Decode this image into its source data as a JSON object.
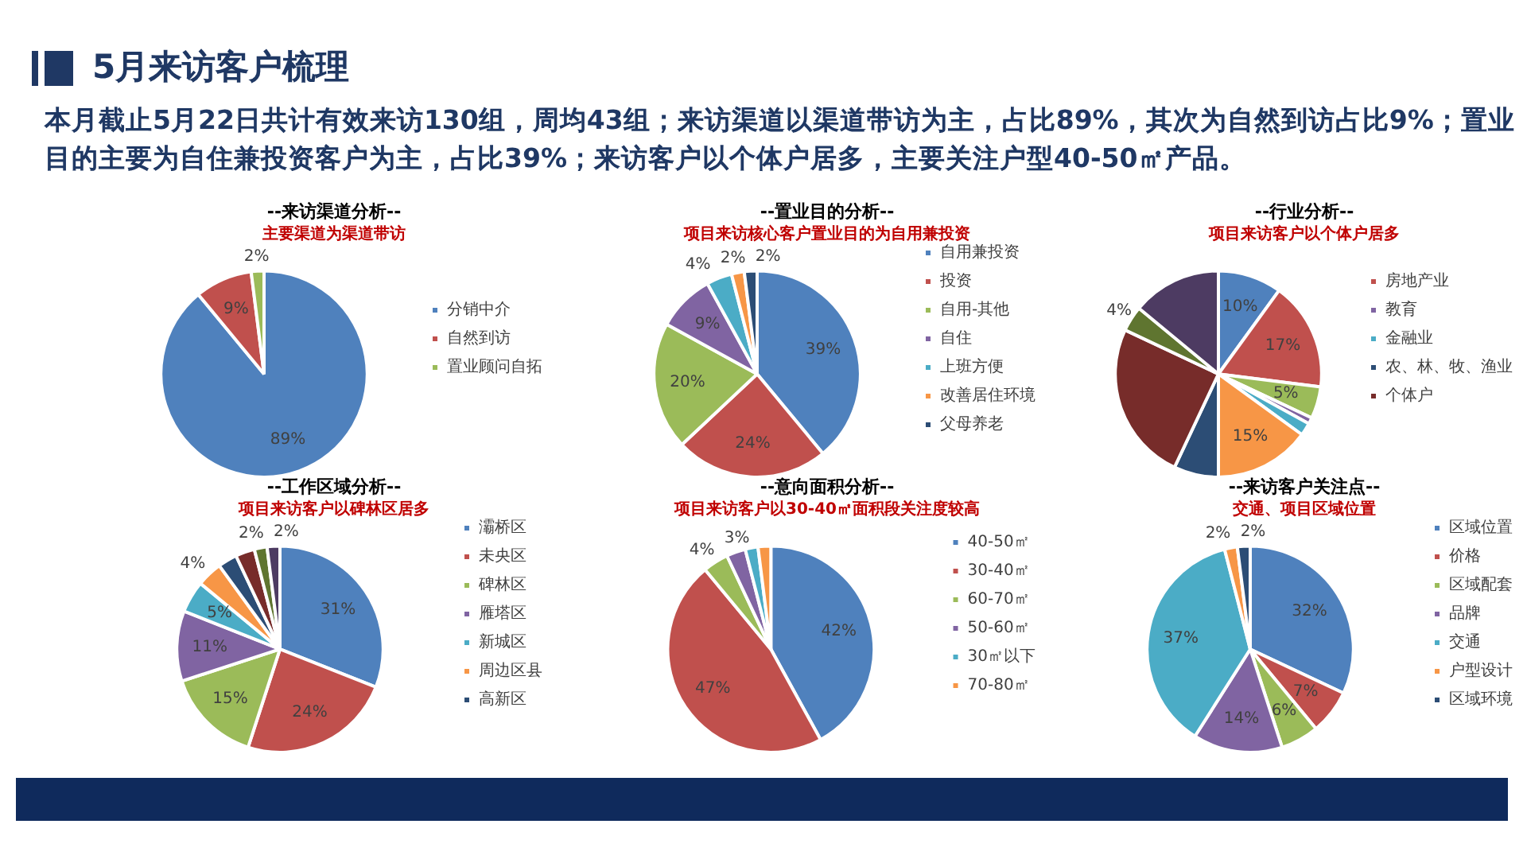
{
  "chart_data": [
    {
      "type": "pie",
      "title": "--来访渠道分析--",
      "subtitle": "主要渠道为渠道带访",
      "annotations": [
        "5月来访客户梳理",
        "本月截止5月22日共计有效来访130组，周均43组；来访渠道以渠道带访为主，占比89%，其次为自然到访占比9%；置业目的主要为自住兼投资客户为主，占比39%；来访客户以个体户居多，主要关注户型40-50㎡产品。"
      ],
      "categories": [
        "分销中介",
        "自然到访",
        "置业顾问自拓"
      ],
      "values": [
        89,
        9,
        2
      ],
      "value_labels": [
        "89%",
        "9%",
        "2%"
      ],
      "colors": [
        "#4f81bd",
        "#c0504d",
        "#9bbb59"
      ],
      "legend": "right"
    },
    {
      "type": "pie",
      "title": "--置业目的分析--",
      "subtitle": "项目来访核心客户置业目的为自用兼投资",
      "categories": [
        "自用兼投资",
        "投资",
        "自用-其他",
        "自住",
        "上班方便",
        "改善居住环境",
        "父母养老"
      ],
      "values": [
        39,
        24,
        20,
        9,
        4,
        2,
        2
      ],
      "value_labels": [
        "39%",
        "24%",
        "20%",
        "9%",
        "4%",
        "2%",
        "2%"
      ],
      "colors": [
        "#4f81bd",
        "#c0504d",
        "#9bbb59",
        "#8064a2",
        "#4bacc6",
        "#f79646",
        "#2c4d75"
      ],
      "legend": "right"
    },
    {
      "type": "pie",
      "title": "--行业分析--",
      "subtitle": "项目来访客户以个体户居多",
      "categories": [
        null,
        "房地产业",
        null,
        "教育",
        "金融业",
        null,
        "农、林、牧、渔业",
        "个体户",
        null,
        null
      ],
      "values": [
        10,
        17,
        5,
        1,
        2,
        15,
        7,
        25,
        4,
        14
      ],
      "value_labels": [
        "10%",
        "17%",
        "5%",
        null,
        null,
        "15%",
        null,
        null,
        "4%",
        null
      ],
      "colors": [
        "#4f81bd",
        "#c0504d",
        "#9bbb59",
        "#8064a2",
        "#4bacc6",
        "#f79646",
        "#2c4d75",
        "#772c2a",
        "#5f7530",
        "#4d3b62"
      ],
      "legend": "right"
    },
    {
      "type": "pie",
      "title": "--工作区域分析--",
      "subtitle": "项目来访客户以碑林区居多",
      "categories": [
        "灞桥区",
        "未央区",
        "碑林区",
        "雁塔区",
        "新城区",
        "周边区县",
        "高新区",
        null,
        null,
        null
      ],
      "values": [
        31,
        24,
        15,
        11,
        5,
        4,
        3,
        3,
        2,
        2
      ],
      "value_labels": [
        "31%",
        "24%",
        "15%",
        "11%",
        "5%",
        "4%",
        null,
        null,
        "2%",
        "2%"
      ],
      "colors": [
        "#4f81bd",
        "#c0504d",
        "#9bbb59",
        "#8064a2",
        "#4bacc6",
        "#f79646",
        "#2c4d75",
        "#772c2a",
        "#5f7530",
        "#4d3b62"
      ],
      "legend": "right"
    },
    {
      "type": "pie",
      "title": "--意向面积分析--",
      "subtitle": "项目来访客户以30-40㎡面积段关注度较高",
      "categories": [
        "40-50㎡",
        "30-40㎡",
        "60-70㎡",
        "50-60㎡",
        "30㎡以下",
        "70-80㎡"
      ],
      "values": [
        42,
        47,
        4,
        3,
        2,
        2
      ],
      "value_labels": [
        "42%",
        "47%",
        "4%",
        "3%",
        null,
        null
      ],
      "colors": [
        "#4f81bd",
        "#c0504d",
        "#9bbb59",
        "#8064a2",
        "#4bacc6",
        "#f79646"
      ],
      "legend": "right"
    },
    {
      "type": "pie",
      "title": "--来访客户关注点--",
      "subtitle": "交通、项目区域位置",
      "categories": [
        "区域位置",
        "价格",
        "区域配套",
        "品牌",
        "交通",
        "户型设计",
        "区域环境"
      ],
      "values": [
        32,
        7,
        6,
        14,
        37,
        2,
        2
      ],
      "value_labels": [
        "32%",
        "7%",
        "6%",
        "14%",
        "37%",
        "2%",
        "2%"
      ],
      "colors": [
        "#4f81bd",
        "#c0504d",
        "#9bbb59",
        "#8064a2",
        "#4bacc6",
        "#f79646",
        "#2c4d75"
      ],
      "legend": "right"
    }
  ]
}
